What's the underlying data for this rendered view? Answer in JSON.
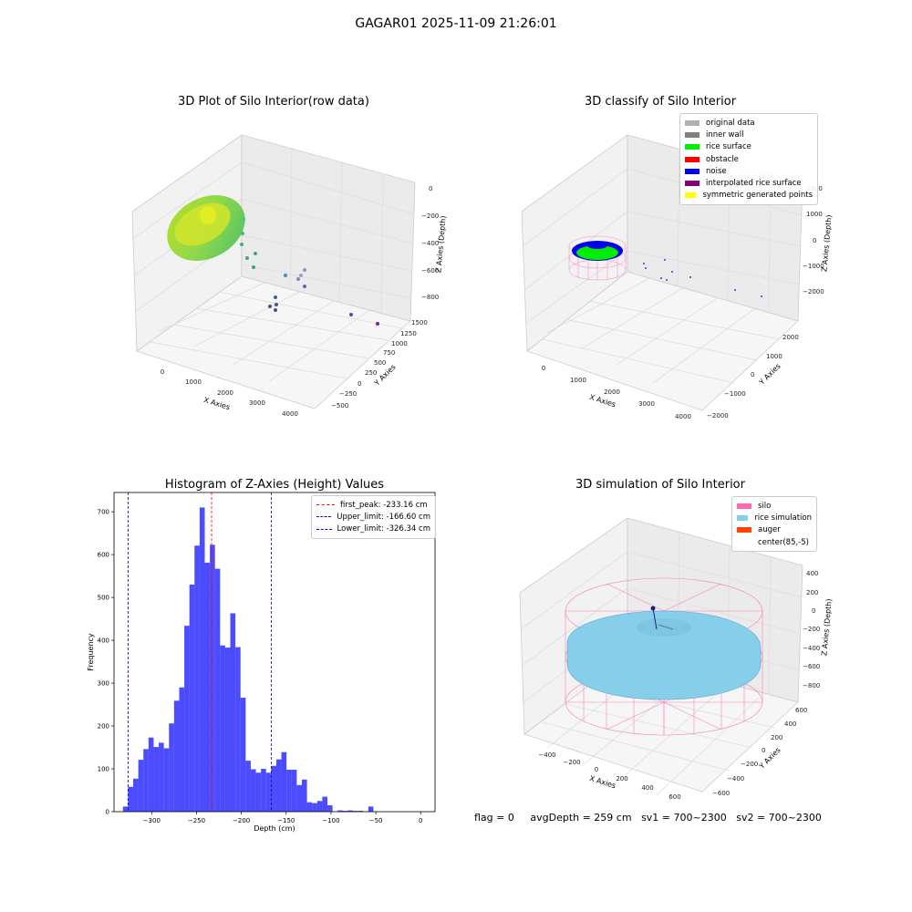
{
  "figure": {
    "title": "GAGAR01 2025-11-09 21:26:01"
  },
  "panels": {
    "raw": {
      "title": "3D Plot of Silo Interior(row data)",
      "xlabel": "X Axies",
      "ylabel": "Y Axies",
      "zlabel": "Z Axies (Depth)",
      "x_ticks": [
        "0",
        "1000",
        "2000",
        "3000",
        "4000"
      ],
      "y_ticks": [
        "1500",
        "1250",
        "1000",
        "750",
        "500",
        "250",
        "0",
        "−250",
        "−500"
      ],
      "z_ticks": [
        "0",
        "−200",
        "−400",
        "−600",
        "−800"
      ]
    },
    "classify": {
      "title": "3D classify of Silo Interior",
      "xlabel": "X Axies",
      "ylabel": "Y Axies",
      "zlabel": "Z Axies (Depth)",
      "x_ticks": [
        "0",
        "1000",
        "2000",
        "3000",
        "4000"
      ],
      "y_ticks": [
        "2000",
        "1000",
        "0",
        "−1000",
        "−2000"
      ],
      "z_ticks": [
        "2000",
        "1000",
        "0",
        "−1000",
        "−2000"
      ],
      "legend": [
        {
          "label": "original data",
          "color": "#b0b0b0"
        },
        {
          "label": "inner wall",
          "color": "#808080"
        },
        {
          "label": "rice surface",
          "color": "#00ee00"
        },
        {
          "label": "obstacle",
          "color": "#ff0000"
        },
        {
          "label": "noise",
          "color": "#0000ee"
        },
        {
          "label": "interpolated rice surface",
          "color": "#800080"
        },
        {
          "label": "symmetric generated points",
          "color": "#ffff00"
        }
      ]
    },
    "simulation": {
      "title": "3D simulation of Silo Interior",
      "xlabel": "X Axies",
      "ylabel": "Y Axies",
      "zlabel": "Z Axies (Depth)",
      "x_ticks": [
        "−400",
        "−200",
        "0",
        "200",
        "400",
        "600"
      ],
      "y_ticks": [
        "600",
        "400",
        "200",
        "0",
        "−200",
        "−400",
        "−600"
      ],
      "z_ticks": [
        "400",
        "200",
        "0",
        "−200",
        "−400",
        "−600",
        "−800"
      ],
      "legend": [
        {
          "label": "silo",
          "color": "#ff69b4"
        },
        {
          "label": "rice simulation",
          "color": "#87ceeb"
        },
        {
          "label": "auger",
          "color": "#ff4500"
        },
        {
          "label": "center(85,-5)",
          "color": "#ffffff"
        }
      ],
      "status": {
        "flag": "flag = 0",
        "avg_depth": "avgDepth = 259 cm",
        "sv1": "sv1 = 700~2300",
        "sv2": "sv2 = 700~2300"
      }
    }
  },
  "chart_data": {
    "type": "bar",
    "title": "Histogram of Z-Axies (Height) Values",
    "xlabel": "Depth (cm)",
    "ylabel": "Frequency",
    "xlim": [
      -342,
      16
    ],
    "ylim": [
      0,
      745
    ],
    "x_ticks": [
      -300,
      -250,
      -200,
      -150,
      -100,
      -50,
      0
    ],
    "y_ticks": [
      0,
      100,
      200,
      300,
      400,
      500,
      600,
      700
    ],
    "bar_color": "#0000ff",
    "bins_start": -332,
    "bin_width": 5.7,
    "values": [
      12,
      58,
      77,
      121,
      146,
      173,
      151,
      161,
      148,
      206,
      259,
      290,
      434,
      530,
      621,
      710,
      581,
      623,
      567,
      388,
      383,
      463,
      384,
      266,
      119,
      99,
      91,
      100,
      91,
      107,
      122,
      139,
      98,
      98,
      62,
      75,
      22,
      20,
      25,
      35,
      15,
      0,
      3,
      2,
      3,
      2,
      2,
      0,
      12
    ],
    "vlines": [
      {
        "label": "first_peak: -233.16 cm",
        "x": -233.16,
        "color": "#ff0000"
      },
      {
        "label": "Upper_limit: -166.60 cm",
        "x": -166.6,
        "color": "#0000cc"
      },
      {
        "label": "Lower_limit: -326.34 cm",
        "x": -326.34,
        "color": "#0000cc"
      }
    ]
  }
}
